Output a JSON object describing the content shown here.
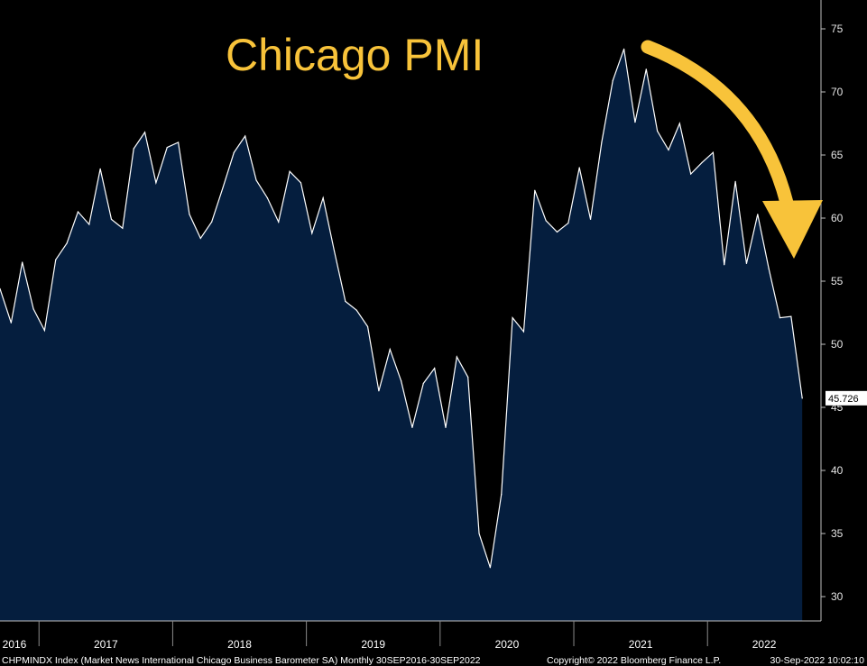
{
  "chart_data": {
    "type": "area",
    "title": "Chicago PMI",
    "ylim": [
      28,
      77
    ],
    "y_ticks": [
      30,
      35,
      40,
      45,
      50,
      55,
      60,
      65,
      70,
      75
    ],
    "x_ticks": [
      "2016",
      "2017",
      "2018",
      "2019",
      "2020",
      "2021",
      "2022"
    ],
    "x_start": "2016-09",
    "x_end": "2022-09",
    "last_value": "45.726",
    "series": [
      {
        "values": [
          54.4,
          51.7,
          56.5,
          52.8,
          51.1,
          56.7,
          58.0,
          60.5,
          59.5,
          63.9,
          59.9,
          59.2,
          65.5,
          66.8,
          62.8,
          65.6,
          66.0,
          60.3,
          58.4,
          59.7,
          62.4,
          65.2,
          66.5,
          63.0,
          61.6,
          59.7,
          63.7,
          62.8,
          58.8,
          61.6,
          57.4,
          53.4,
          52.7,
          51.4,
          46.3,
          49.6,
          47.1,
          43.4,
          46.9,
          48.1,
          43.4,
          49.0,
          47.4,
          35.0,
          32.3,
          38.1,
          52.1,
          51.0,
          62.2,
          59.8,
          58.9,
          59.6,
          64.0,
          59.9,
          66.0,
          70.9,
          73.4,
          67.6,
          71.8,
          66.9,
          65.4,
          67.5,
          63.5,
          64.4,
          65.2,
          56.3,
          62.9,
          56.4,
          60.3,
          56.0,
          52.1,
          52.2,
          45.726
        ]
      }
    ],
    "footer": {
      "left": "CHPMINDX Index (Market News International Chicago Business Barometer SA)  Monthly 30SEP2016-30SEP2022",
      "center": "Copyright© 2022 Bloomberg Finance L.P.",
      "right": "30-Sep-2022 10:02:10"
    },
    "colors": {
      "area_fill": "#051e3e",
      "line": "#ffffff",
      "title": "#f8c33a",
      "arrow": "#f8c33a",
      "background": "#000000"
    }
  }
}
